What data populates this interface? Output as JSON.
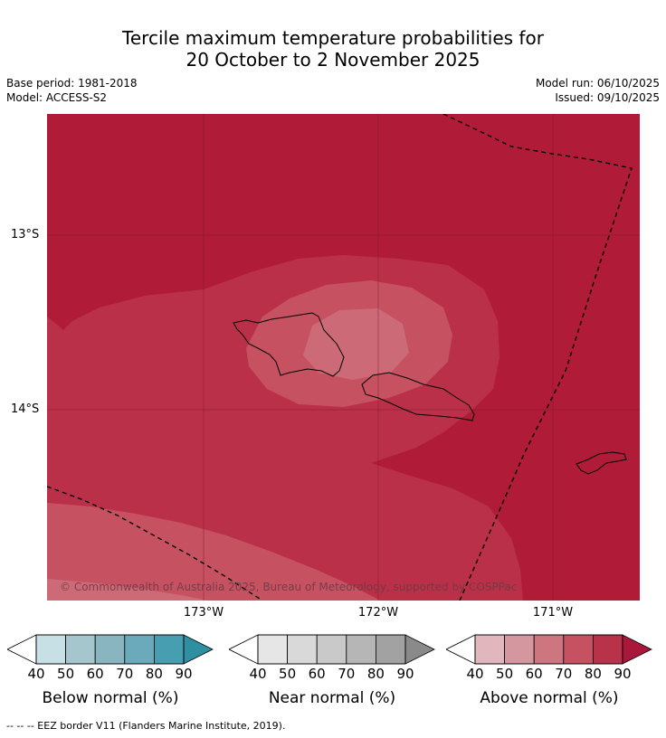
{
  "title": {
    "line1": "Tercile maximum temperature probabilities for",
    "line2": "20 October to 2 November 2025"
  },
  "meta": {
    "base_period": "Base period: 1981-2018",
    "model": "Model: ACCESS-S2",
    "model_run": "Model run: 06/10/2025",
    "issued": "Issued: 09/10/2025"
  },
  "map": {
    "lat_labels": [
      "13°S",
      "14°S"
    ],
    "lon_labels": [
      "173°W",
      "172°W",
      "171°W"
    ],
    "copyright": "© Commonwealth of Australia 2025, Bureau of Meteorology, supported by COSPPac",
    "colors": {
      "above_90": "#b01c38",
      "above_80": "#bb3049",
      "above_70": "#c55161",
      "above_60": "#cd6a77",
      "border": "#000000",
      "grid": "#7a1528"
    }
  },
  "legend": [
    {
      "name": "Below normal (%)",
      "ticks": [
        "40",
        "50",
        "60",
        "70",
        "80",
        "90"
      ],
      "colors": [
        "#c7e0e6",
        "#a4c6cc",
        "#88b5c0",
        "#6aaaba",
        "#479eb1",
        "#2e8fa0"
      ]
    },
    {
      "name": "Near normal (%)",
      "ticks": [
        "40",
        "50",
        "60",
        "70",
        "80",
        "90"
      ],
      "colors": [
        "#e6e6e6",
        "#d9d9d9",
        "#c9c9c9",
        "#b6b6b6",
        "#a2a2a2",
        "#8a8a8a"
      ]
    },
    {
      "name": "Above normal (%)",
      "ticks": [
        "40",
        "50",
        "60",
        "70",
        "80",
        "90"
      ],
      "colors": [
        "#e1b7bd",
        "#d4979f",
        "#cd7680",
        "#c55161",
        "#b8324a",
        "#a9183a"
      ]
    }
  ],
  "footnote": "--  --  -- EEZ border V11 (Flanders Marine Institute, 2019)."
}
